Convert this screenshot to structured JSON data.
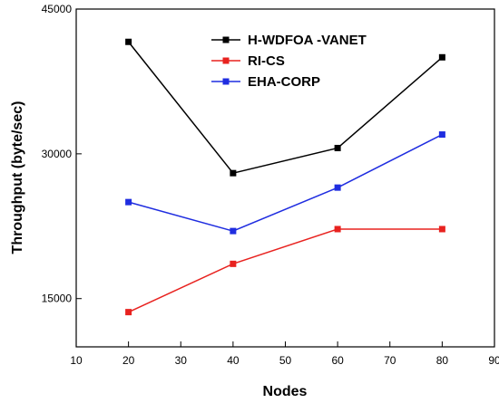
{
  "chart_data": {
    "type": "line",
    "title": "",
    "xlabel": "Nodes",
    "ylabel": "Throughput (byte/sec)",
    "xlim": [
      10,
      90
    ],
    "ylim": [
      10000,
      45000
    ],
    "x_ticks": [
      "10",
      "20",
      "30",
      "40",
      "50",
      "60",
      "70",
      "80",
      "90"
    ],
    "y_ticks": [
      "15000",
      "30000",
      "45000"
    ],
    "grid": false,
    "legend_position": "top-right",
    "x": [
      20,
      40,
      60,
      80
    ],
    "series": [
      {
        "name": "H-WDFOA -VANET",
        "color": "#000000",
        "values": [
          41600,
          28000,
          30600,
          40000
        ]
      },
      {
        "name": "RI-CS",
        "color": "#e8221f",
        "values": [
          13600,
          18600,
          22200,
          22200
        ]
      },
      {
        "name": "EHA-CORP",
        "color": "#1f2de0",
        "values": [
          25000,
          22000,
          26500,
          32000
        ]
      }
    ]
  }
}
